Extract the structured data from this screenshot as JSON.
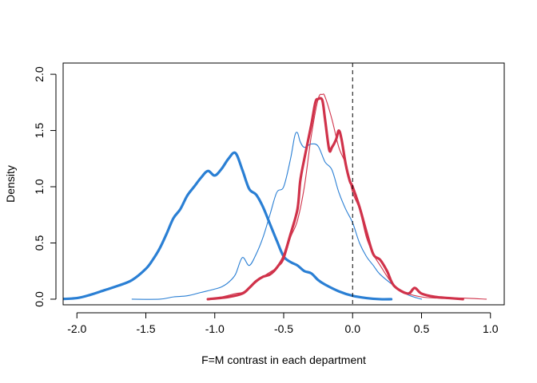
{
  "chart_data": {
    "type": "line",
    "title": "",
    "xlabel": "F=M contrast in each department",
    "ylabel": "Density",
    "xlim": [
      -2.1,
      1.1
    ],
    "ylim": [
      -0.05,
      2.1
    ],
    "xticks": [
      -2.0,
      -1.5,
      -1.0,
      -0.5,
      0.0,
      0.5,
      1.0
    ],
    "xtick_labels": [
      "-2.0",
      "-1.5",
      "-1.0",
      "-0.5",
      "0.0",
      "0.5",
      "1.0"
    ],
    "yticks": [
      0.0,
      0.5,
      1.0,
      1.5,
      2.0
    ],
    "ytick_labels": [
      "0.0",
      "0.5",
      "1.0",
      "1.5",
      "2.0"
    ],
    "grid": false,
    "legend": "none",
    "reference_line": {
      "x": 0.0,
      "style": "dashed",
      "color": "#000000"
    },
    "series": [
      {
        "color": "#2a7fd4",
        "weight": "thick",
        "x": [
          -2.15,
          -2.0,
          -1.9,
          -1.8,
          -1.7,
          -1.6,
          -1.5,
          -1.45,
          -1.4,
          -1.35,
          -1.3,
          -1.25,
          -1.2,
          -1.15,
          -1.1,
          -1.05,
          -1.0,
          -0.95,
          -0.9,
          -0.85,
          -0.8,
          -0.75,
          -0.7,
          -0.65,
          -0.6,
          -0.55,
          -0.5,
          -0.45,
          -0.4,
          -0.35,
          -0.3,
          -0.25,
          -0.2,
          -0.1,
          0.0,
          0.1,
          0.2,
          0.28
        ],
        "y": [
          0.0,
          0.01,
          0.04,
          0.08,
          0.12,
          0.17,
          0.27,
          0.35,
          0.45,
          0.58,
          0.72,
          0.8,
          0.92,
          1.0,
          1.08,
          1.14,
          1.1,
          1.16,
          1.25,
          1.3,
          1.15,
          0.98,
          0.93,
          0.82,
          0.67,
          0.52,
          0.38,
          0.33,
          0.3,
          0.25,
          0.23,
          0.17,
          0.13,
          0.07,
          0.03,
          0.01,
          0.0,
          0.0
        ]
      },
      {
        "color": "#2a7fd4",
        "weight": "thin",
        "x": [
          -1.6,
          -1.4,
          -1.3,
          -1.2,
          -1.1,
          -1.0,
          -0.95,
          -0.9,
          -0.85,
          -0.8,
          -0.75,
          -0.7,
          -0.65,
          -0.6,
          -0.55,
          -0.5,
          -0.45,
          -0.42,
          -0.4,
          -0.38,
          -0.35,
          -0.3,
          -0.25,
          -0.2,
          -0.15,
          -0.1,
          -0.05,
          0.0,
          0.05,
          0.1,
          0.15,
          0.2,
          0.3,
          0.4,
          0.5
        ],
        "y": [
          0.0,
          0.0,
          0.02,
          0.03,
          0.06,
          0.09,
          0.11,
          0.15,
          0.22,
          0.37,
          0.3,
          0.4,
          0.55,
          0.75,
          0.95,
          1.0,
          1.25,
          1.45,
          1.48,
          1.4,
          1.35,
          1.38,
          1.36,
          1.22,
          1.15,
          0.95,
          0.8,
          0.68,
          0.5,
          0.38,
          0.3,
          0.22,
          0.12,
          0.04,
          0.0
        ]
      },
      {
        "color": "#d0324a",
        "weight": "thin",
        "x": [
          -1.05,
          -0.95,
          -0.85,
          -0.8,
          -0.75,
          -0.7,
          -0.65,
          -0.6,
          -0.55,
          -0.5,
          -0.45,
          -0.4,
          -0.35,
          -0.3,
          -0.25,
          -0.22,
          -0.2,
          -0.15,
          -0.1,
          -0.05,
          0.0,
          0.05,
          0.1,
          0.15,
          0.2,
          0.3,
          0.4,
          0.5,
          0.6,
          0.7,
          0.8,
          0.97
        ],
        "y": [
          0.0,
          0.02,
          0.05,
          0.06,
          0.1,
          0.15,
          0.2,
          0.24,
          0.28,
          0.35,
          0.55,
          0.7,
          1.0,
          1.45,
          1.78,
          1.82,
          1.8,
          1.6,
          1.35,
          1.2,
          0.95,
          0.8,
          0.55,
          0.4,
          0.3,
          0.12,
          0.05,
          0.02,
          0.01,
          0.01,
          0.01,
          0.0
        ]
      },
      {
        "color": "#d0324a",
        "weight": "thick",
        "x": [
          -1.05,
          -0.9,
          -0.8,
          -0.75,
          -0.7,
          -0.65,
          -0.6,
          -0.55,
          -0.5,
          -0.45,
          -0.4,
          -0.38,
          -0.35,
          -0.3,
          -0.27,
          -0.25,
          -0.22,
          -0.2,
          -0.17,
          -0.15,
          -0.12,
          -0.1,
          -0.08,
          -0.05,
          -0.02,
          0.0,
          0.05,
          0.1,
          0.15,
          0.2,
          0.25,
          0.3,
          0.4,
          0.45,
          0.5,
          0.6,
          0.7,
          0.8
        ],
        "y": [
          0.0,
          0.02,
          0.05,
          0.1,
          0.16,
          0.2,
          0.22,
          0.28,
          0.38,
          0.58,
          0.8,
          1.05,
          1.25,
          1.55,
          1.75,
          1.78,
          1.77,
          1.6,
          1.33,
          1.35,
          1.42,
          1.5,
          1.42,
          1.2,
          1.05,
          1.0,
          0.82,
          0.6,
          0.4,
          0.35,
          0.25,
          0.12,
          0.05,
          0.1,
          0.05,
          0.02,
          0.01,
          0.0
        ]
      }
    ]
  }
}
